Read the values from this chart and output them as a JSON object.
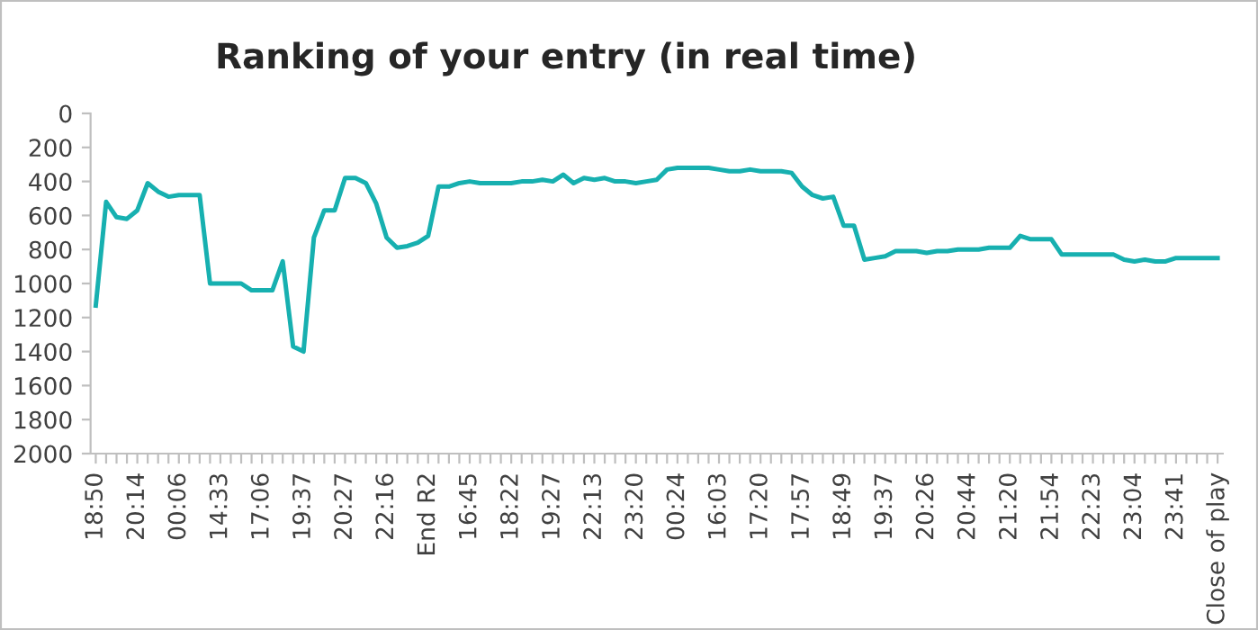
{
  "chart_data": {
    "type": "line",
    "title": "Ranking of your entry (in real time)",
    "categories": [
      "18:50",
      null,
      null,
      null,
      "20:14",
      null,
      null,
      null,
      "00:06",
      null,
      null,
      null,
      "14:33",
      null,
      null,
      null,
      "17:06",
      null,
      null,
      null,
      "19:37",
      null,
      null,
      null,
      "20:27",
      null,
      null,
      null,
      "22:16",
      null,
      null,
      null,
      "End R2",
      null,
      null,
      null,
      "16:45",
      null,
      null,
      null,
      "18:22",
      null,
      null,
      null,
      "19:27",
      null,
      null,
      null,
      "22:13",
      null,
      null,
      null,
      "23:20",
      null,
      null,
      null,
      "00:24",
      null,
      null,
      null,
      "16:03",
      null,
      null,
      null,
      "17:20",
      null,
      null,
      null,
      "17:57",
      null,
      null,
      null,
      "18:49",
      null,
      null,
      null,
      "19:37",
      null,
      null,
      null,
      "20:26",
      null,
      null,
      null,
      "20:44",
      null,
      null,
      null,
      "21:20",
      null,
      null,
      null,
      "21:54",
      null,
      null,
      null,
      "22:23",
      null,
      null,
      null,
      "23:04",
      null,
      null,
      null,
      "23:41",
      null,
      null,
      null,
      "Close of play"
    ],
    "series": [
      {
        "color": "#17b0b0",
        "values": [
          1130,
          520,
          610,
          620,
          570,
          410,
          460,
          490,
          480,
          480,
          480,
          1000,
          1000,
          1000,
          1000,
          1040,
          1040,
          1040,
          870,
          1370,
          1400,
          730,
          570,
          570,
          380,
          380,
          410,
          530,
          730,
          790,
          780,
          760,
          720,
          430,
          430,
          410,
          400,
          410,
          410,
          410,
          410,
          400,
          400,
          390,
          400,
          360,
          410,
          380,
          390,
          380,
          400,
          400,
          410,
          400,
          390,
          330,
          320,
          320,
          320,
          320,
          330,
          340,
          340,
          330,
          340,
          340,
          340,
          350,
          430,
          480,
          500,
          490,
          660,
          660,
          860,
          850,
          840,
          810,
          810,
          810,
          820,
          810,
          810,
          800,
          800,
          800,
          790,
          790,
          790,
          720,
          740,
          740,
          740,
          830,
          830,
          830,
          830,
          830,
          830,
          860,
          870,
          860,
          870,
          870,
          850,
          850,
          850,
          850,
          850
        ]
      }
    ],
    "ylim": [
      2000,
      0
    ],
    "yticks": [
      0,
      200,
      400,
      600,
      800,
      1000,
      1200,
      1400,
      1600,
      1800,
      2000
    ],
    "grid": false,
    "marker": "none",
    "line_style": "solid"
  }
}
